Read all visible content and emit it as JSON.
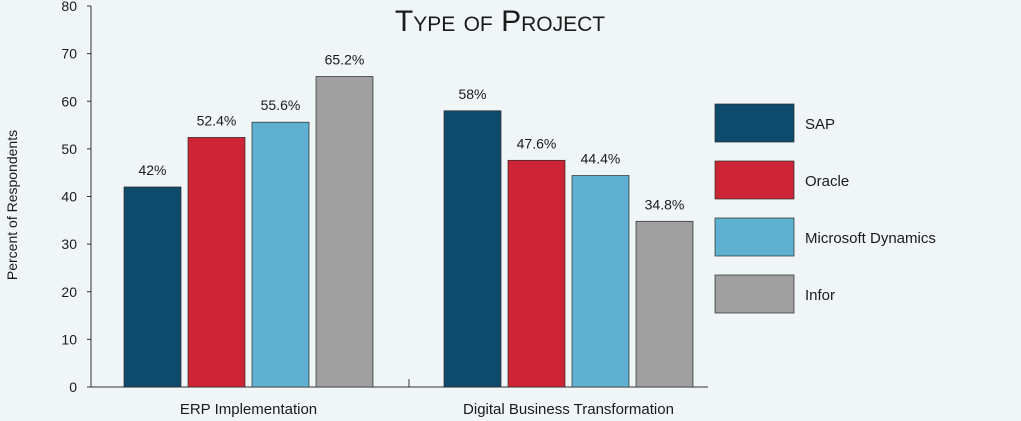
{
  "chart_data": {
    "type": "bar",
    "title": "Type of Project",
    "ylabel": "Percent of Respondents",
    "xlabel": "",
    "ylim": [
      0,
      80
    ],
    "yticks": [
      0,
      10,
      20,
      30,
      40,
      50,
      60,
      70,
      80
    ],
    "categories": [
      "ERP Implementation",
      "Digital Business Transformation"
    ],
    "series": [
      {
        "name": "SAP",
        "color": "#0d4a6b",
        "values": [
          42,
          58
        ],
        "labels": [
          "42%",
          "58%"
        ]
      },
      {
        "name": "Oracle",
        "color": "#cd2535",
        "values": [
          52.4,
          47.6
        ],
        "labels": [
          "52.4%",
          "47.6%"
        ]
      },
      {
        "name": "Microsoft Dynamics",
        "color": "#5fb1cf",
        "values": [
          55.6,
          44.4
        ],
        "labels": [
          "55.6%",
          "44.4%"
        ]
      },
      {
        "name": "Infor",
        "color": "#a0a0a0",
        "values": [
          65.2,
          34.8
        ],
        "labels": [
          "65.2%",
          "34.8%"
        ]
      }
    ],
    "legend_position": "right",
    "grid": false
  }
}
